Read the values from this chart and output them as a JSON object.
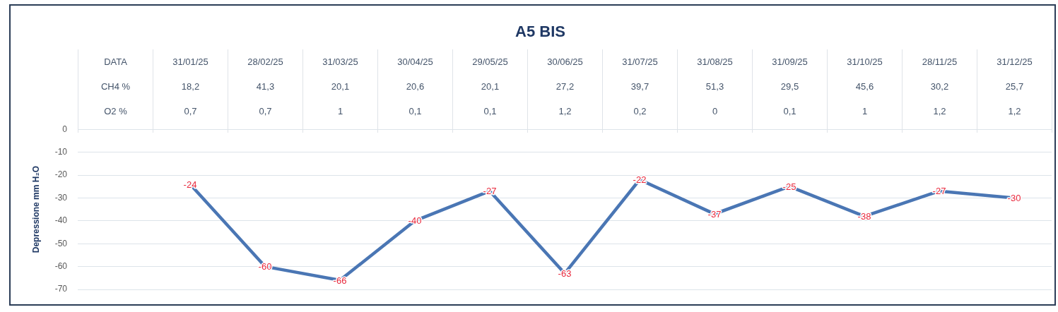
{
  "chart_data": [
    {
      "type": "other",
      "title": "A5 BIS",
      "xlabel": "DATA",
      "categories": [
        "31/01/25",
        "28/02/25",
        "31/03/25",
        "30/04/25",
        "29/05/25",
        "30/06/25",
        "31/07/25",
        "31/08/25",
        "31/09/25",
        "31/10/25",
        "28/11/25",
        "31/12/25"
      ],
      "series": [
        {
          "name": "CH4 %",
          "color": "#44546a",
          "values": [
            18.2,
            41.3,
            20.1,
            20.6,
            20.1,
            27.2,
            39.7,
            51.3,
            29.5,
            45.6,
            30.2,
            25.7
          ],
          "value_labels": [
            "18,2",
            "41,3",
            "20,1",
            "20,6",
            "20,1",
            "27,2",
            "39,7",
            "51,3",
            "29,5",
            "45,6",
            "30,2",
            "25,7"
          ]
        },
        {
          "name": "O2 %",
          "color": "#44546a",
          "values": [
            0.7,
            0.7,
            1,
            0.1,
            0.1,
            1.2,
            0.2,
            0,
            0.1,
            1,
            1.2,
            1.2
          ],
          "value_labels": [
            "0,7",
            "0,7",
            "1",
            "0,1",
            "0,1",
            "1,2",
            "0,2",
            "0",
            "0,1",
            "1",
            "1,2",
            "1,2"
          ]
        }
      ]
    },
    {
      "type": "line",
      "ylabel": "Depressione mm H₂O",
      "categories": [
        null,
        null,
        null,
        null,
        null,
        null,
        null,
        null,
        null,
        null,
        null,
        null
      ],
      "series": [
        {
          "color": "#4a76b4",
          "values": [
            -24,
            -60,
            -66,
            -40,
            -27,
            -63,
            -22,
            -37,
            -25,
            -38,
            -27,
            -30
          ]
        }
      ],
      "ylim": [
        -70,
        0
      ],
      "yticks": [
        -70,
        -60,
        -50,
        -40,
        -30,
        -20,
        -10,
        0
      ],
      "grid": "y",
      "data_labels": true,
      "marker": "none"
    }
  ]
}
